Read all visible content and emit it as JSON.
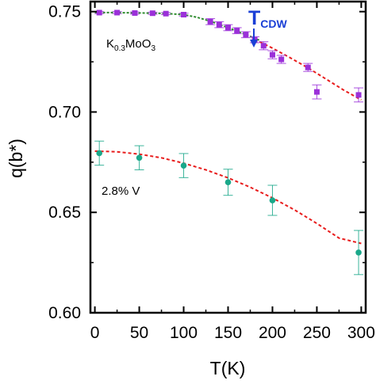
{
  "chart_data": {
    "type": "scatter",
    "xlabel": "T(K)",
    "ylabel": "q(b*)",
    "xlim": [
      -5,
      305
    ],
    "ylim": [
      0.6,
      0.755
    ],
    "x_ticks": [
      "0",
      "50",
      "100",
      "150",
      "200",
      "250",
      "300"
    ],
    "y_ticks": [
      "0.60",
      "0.65",
      "0.70",
      "0.75"
    ],
    "grid": false,
    "annotations": {
      "series_label_prefix": "K",
      "series_label_sub1": "0.3",
      "series_label_mid": "MoO",
      "series_label_sub2": "3",
      "doped_label": "2.8% V",
      "tcdw_main": "T",
      "tcdw_sub": "CDW",
      "tcdw_x": 183
    },
    "series": [
      {
        "marker": "square",
        "color": "#9b30d9",
        "points": [
          {
            "x": 5,
            "y": 0.7495,
            "err": 0.0005
          },
          {
            "x": 25,
            "y": 0.7495,
            "err": 0.0005
          },
          {
            "x": 45,
            "y": 0.7493,
            "err": 0.0005
          },
          {
            "x": 65,
            "y": 0.7492,
            "err": 0.0005
          },
          {
            "x": 80,
            "y": 0.749,
            "err": 0.0005
          },
          {
            "x": 100,
            "y": 0.7485,
            "err": 0.0007
          },
          {
            "x": 130,
            "y": 0.745,
            "err": 0.0015
          },
          {
            "x": 140,
            "y": 0.7435,
            "err": 0.0015
          },
          {
            "x": 150,
            "y": 0.742,
            "err": 0.0015
          },
          {
            "x": 160,
            "y": 0.7405,
            "err": 0.0015
          },
          {
            "x": 170,
            "y": 0.7385,
            "err": 0.0015
          },
          {
            "x": 180,
            "y": 0.736,
            "err": 0.0015
          },
          {
            "x": 190,
            "y": 0.733,
            "err": 0.002
          },
          {
            "x": 200,
            "y": 0.7285,
            "err": 0.002
          },
          {
            "x": 210,
            "y": 0.7262,
            "err": 0.002
          },
          {
            "x": 240,
            "y": 0.7222,
            "err": 0.002
          },
          {
            "x": 250,
            "y": 0.71,
            "err": 0.0035
          },
          {
            "x": 297,
            "y": 0.7085,
            "err": 0.0035
          }
        ]
      },
      {
        "marker": "circle",
        "color": "#1aa88a",
        "points": [
          {
            "x": 5,
            "y": 0.6795,
            "err": 0.006
          },
          {
            "x": 50,
            "y": 0.6772,
            "err": 0.006
          },
          {
            "x": 100,
            "y": 0.6733,
            "err": 0.006
          },
          {
            "x": 150,
            "y": 0.665,
            "err": 0.0065
          },
          {
            "x": 200,
            "y": 0.656,
            "err": 0.0075
          },
          {
            "x": 297,
            "y": 0.63,
            "err": 0.011
          }
        ]
      }
    ],
    "fits": [
      {
        "color": "#2e8b2e",
        "dash": "3,2",
        "points": [
          [
            0,
            0.7495
          ],
          [
            20,
            0.7495
          ],
          [
            40,
            0.7494
          ],
          [
            60,
            0.7493
          ],
          [
            80,
            0.7491
          ],
          [
            100,
            0.7485
          ],
          [
            115,
            0.7472
          ],
          [
            130,
            0.7452
          ],
          [
            145,
            0.7428
          ],
          [
            160,
            0.7403
          ],
          [
            175,
            0.7377
          ],
          [
            185,
            0.7358
          ]
        ]
      },
      {
        "color": "#e81c1c",
        "dash": "4,3",
        "points": [
          [
            180,
            0.7362
          ],
          [
            200,
            0.7318
          ],
          [
            220,
            0.727
          ],
          [
            240,
            0.722
          ],
          [
            260,
            0.7165
          ],
          [
            280,
            0.711
          ],
          [
            300,
            0.706
          ]
        ]
      },
      {
        "color": "#e81c1c",
        "dash": "4,3",
        "points": [
          [
            0,
            0.6805
          ],
          [
            25,
            0.6802
          ],
          [
            50,
            0.679
          ],
          [
            75,
            0.6772
          ],
          [
            100,
            0.6745
          ],
          [
            125,
            0.6712
          ],
          [
            150,
            0.6672
          ],
          [
            175,
            0.6625
          ],
          [
            200,
            0.6572
          ],
          [
            225,
            0.6512
          ],
          [
            250,
            0.6445
          ],
          [
            275,
            0.6372
          ],
          [
            300,
            0.6345
          ]
        ]
      }
    ]
  }
}
